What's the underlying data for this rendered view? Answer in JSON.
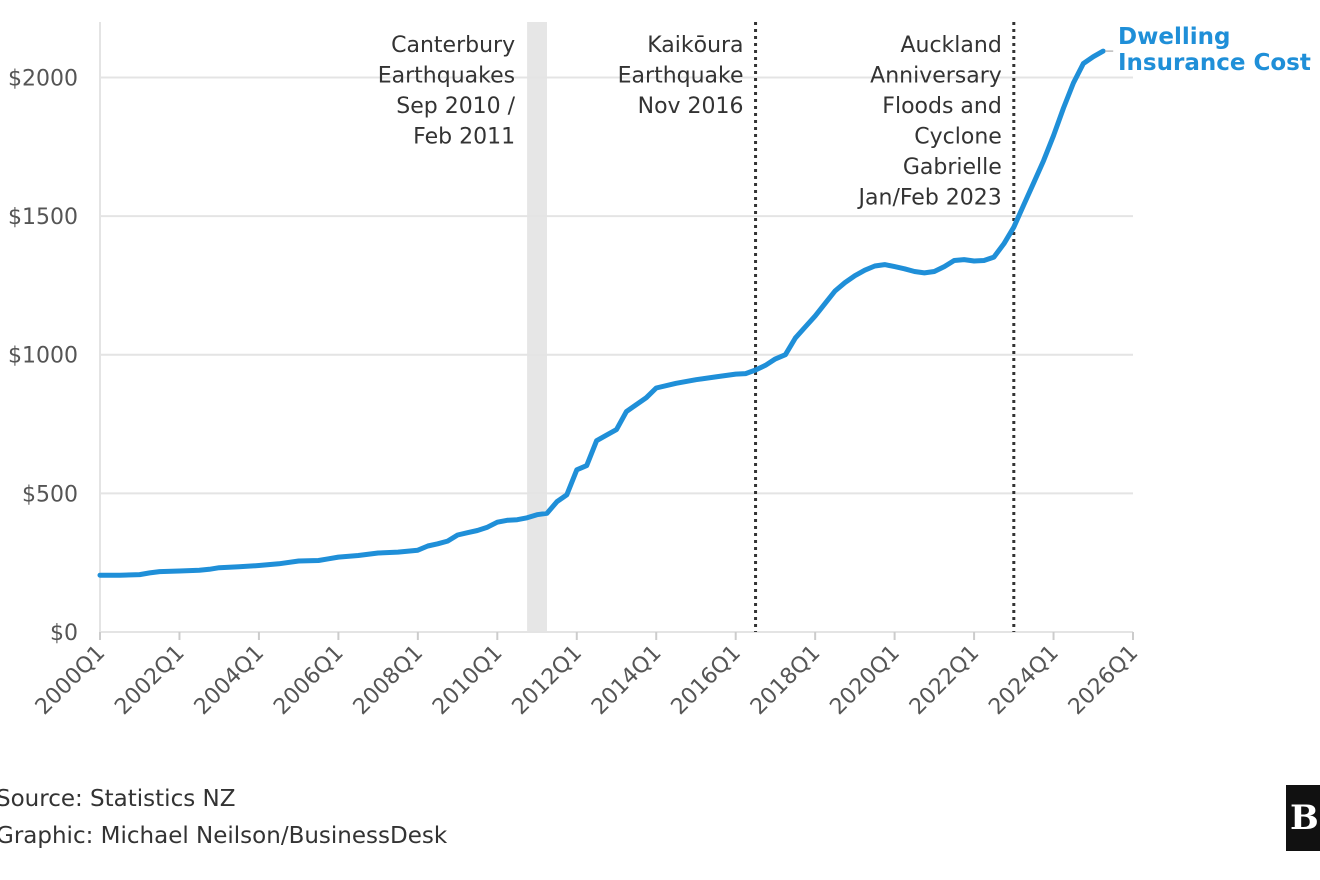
{
  "chart_data": {
    "type": "line",
    "title": "",
    "xlabel": "",
    "ylabel": "",
    "ylim": [
      0,
      2200
    ],
    "yticks": [
      0,
      500,
      1000,
      1500,
      2000
    ],
    "ytick_labels": [
      "$0",
      "$500",
      "$1000",
      "$1500",
      "$2000"
    ],
    "xlim": [
      2000.0,
      2026.0
    ],
    "xticks": [
      2000,
      2002,
      2004,
      2006,
      2008,
      2010,
      2012,
      2014,
      2016,
      2018,
      2020,
      2022,
      2024,
      2026
    ],
    "xtick_labels": [
      "2000Q1",
      "2002Q1",
      "2004Q1",
      "2006Q1",
      "2008Q1",
      "2010Q1",
      "2012Q1",
      "2014Q1",
      "2016Q1",
      "2018Q1",
      "2020Q1",
      "2022Q1",
      "2024Q1",
      "2026Q1"
    ],
    "grid": "horizontal",
    "series": [
      {
        "name": "Dwelling Insurance Cost",
        "label_lines": [
          "Dwelling",
          "Insurance Cost"
        ],
        "color": "#1f8fd8",
        "points": [
          [
            2000.0,
            205
          ],
          [
            2000.5,
            205
          ],
          [
            2001.0,
            207
          ],
          [
            2001.25,
            213
          ],
          [
            2001.5,
            218
          ],
          [
            2002.0,
            220
          ],
          [
            2002.5,
            223
          ],
          [
            2002.75,
            226
          ],
          [
            2003.0,
            232
          ],
          [
            2003.5,
            235
          ],
          [
            2004.0,
            240
          ],
          [
            2004.5,
            246
          ],
          [
            2005.0,
            256
          ],
          [
            2005.5,
            258
          ],
          [
            2005.75,
            264
          ],
          [
            2006.0,
            270
          ],
          [
            2006.5,
            276
          ],
          [
            2007.0,
            285
          ],
          [
            2007.5,
            288
          ],
          [
            2008.0,
            295
          ],
          [
            2008.25,
            310
          ],
          [
            2008.5,
            318
          ],
          [
            2008.75,
            328
          ],
          [
            2009.0,
            350
          ],
          [
            2009.25,
            358
          ],
          [
            2009.5,
            366
          ],
          [
            2009.75,
            378
          ],
          [
            2010.0,
            396
          ],
          [
            2010.25,
            403
          ],
          [
            2010.5,
            405
          ],
          [
            2010.75,
            412
          ],
          [
            2011.0,
            423
          ],
          [
            2011.25,
            428
          ],
          [
            2011.5,
            470
          ],
          [
            2011.75,
            495
          ],
          [
            2012.0,
            585
          ],
          [
            2012.25,
            600
          ],
          [
            2012.5,
            690
          ],
          [
            2012.75,
            710
          ],
          [
            2013.0,
            730
          ],
          [
            2013.25,
            795
          ],
          [
            2013.5,
            820
          ],
          [
            2013.75,
            845
          ],
          [
            2014.0,
            880
          ],
          [
            2014.5,
            897
          ],
          [
            2015.0,
            910
          ],
          [
            2015.5,
            920
          ],
          [
            2016.0,
            930
          ],
          [
            2016.25,
            932
          ],
          [
            2016.5,
            945
          ],
          [
            2016.75,
            962
          ],
          [
            2017.0,
            985
          ],
          [
            2017.25,
            1000
          ],
          [
            2017.5,
            1060
          ],
          [
            2017.75,
            1100
          ],
          [
            2018.0,
            1140
          ],
          [
            2018.25,
            1185
          ],
          [
            2018.5,
            1230
          ],
          [
            2018.75,
            1260
          ],
          [
            2019.0,
            1285
          ],
          [
            2019.25,
            1305
          ],
          [
            2019.5,
            1320
          ],
          [
            2019.75,
            1325
          ],
          [
            2020.0,
            1318
          ],
          [
            2020.25,
            1310
          ],
          [
            2020.5,
            1300
          ],
          [
            2020.75,
            1295
          ],
          [
            2021.0,
            1300
          ],
          [
            2021.25,
            1318
          ],
          [
            2021.5,
            1340
          ],
          [
            2021.75,
            1343
          ],
          [
            2022.0,
            1338
          ],
          [
            2022.25,
            1340
          ],
          [
            2022.5,
            1352
          ],
          [
            2022.75,
            1400
          ],
          [
            2023.0,
            1460
          ],
          [
            2023.25,
            1540
          ],
          [
            2023.5,
            1620
          ],
          [
            2023.75,
            1700
          ],
          [
            2024.0,
            1790
          ],
          [
            2024.25,
            1890
          ],
          [
            2024.5,
            1980
          ],
          [
            2024.75,
            2050
          ],
          [
            2025.0,
            2075
          ],
          [
            2025.25,
            2095
          ]
        ]
      }
    ],
    "annotations": [
      {
        "type": "band",
        "x_start": 2010.75,
        "x_end": 2011.25,
        "color": "#e6e6e6",
        "text_lines": [
          "Canterbury",
          "Earthquakes",
          "Sep 2010 /",
          "Feb 2011"
        ]
      },
      {
        "type": "line",
        "x": 2016.5,
        "style": "dotted",
        "text_lines": [
          "Kaikōura",
          "Earthquake",
          "Nov 2016"
        ]
      },
      {
        "type": "line",
        "x": 2023.0,
        "style": "dotted",
        "text_lines": [
          "Auckland",
          "Anniversary",
          "Floods and",
          "Cyclone",
          "Gabrielle",
          "Jan/Feb 2023"
        ]
      }
    ]
  },
  "footer": {
    "source": "Source: Statistics NZ",
    "credit": "Graphic: Michael Neilson/BusinessDesk",
    "logo_text": "BD"
  }
}
